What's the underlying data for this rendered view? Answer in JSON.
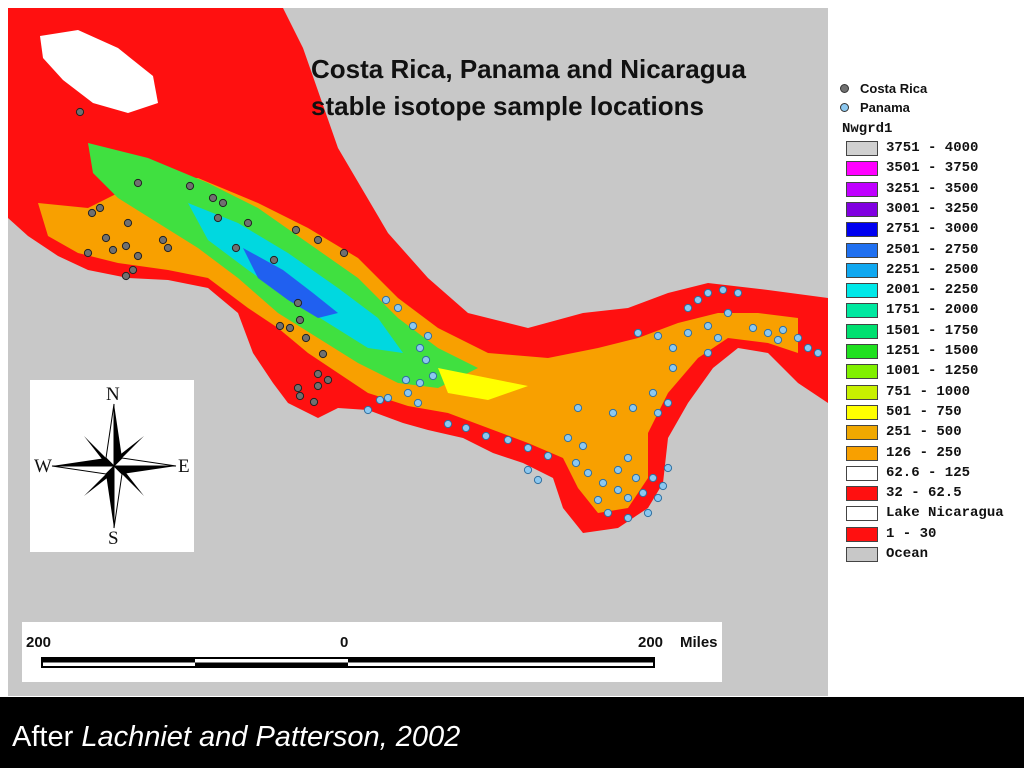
{
  "title": {
    "line1": "Costa Rica, Panama and Nicaragua",
    "line2": "stable isotope sample locations"
  },
  "compass": {
    "north": "N",
    "south": "S",
    "east": "E",
    "west": "W"
  },
  "scale": {
    "left": "200",
    "center": "0",
    "right": "200",
    "unit": "Miles"
  },
  "legend": {
    "points": [
      {
        "label": "Costa Rica",
        "color": "#707070"
      },
      {
        "label": "Panama",
        "color": "#8cc8f0"
      }
    ],
    "title": "Nwgrd1",
    "classes": [
      {
        "label": "3751 - 4000",
        "color": "#d0d0d0"
      },
      {
        "label": "3501 - 3750",
        "color": "#ff00ff"
      },
      {
        "label": "3251 - 3500",
        "color": "#c000ff"
      },
      {
        "label": "3001 - 3250",
        "color": "#8000e0"
      },
      {
        "label": "2751 - 3000",
        "color": "#0000f0"
      },
      {
        "label": "2501 - 2750",
        "color": "#2070f0"
      },
      {
        "label": "2251 - 2500",
        "color": "#10a8f0"
      },
      {
        "label": "2001 - 2250",
        "color": "#00e8e8"
      },
      {
        "label": "1751 - 2000",
        "color": "#00e8a0"
      },
      {
        "label": "1501 - 1750",
        "color": "#00e070"
      },
      {
        "label": "1251 - 1500",
        "color": "#20e020"
      },
      {
        "label": "1001 - 1250",
        "color": "#80f000"
      },
      {
        "label": "751 - 1000",
        "color": "#c8f000"
      },
      {
        "label": "501 - 750",
        "color": "#ffff00"
      },
      {
        "label": "251 - 500",
        "color": "#f0a800"
      },
      {
        "label": "126 - 250",
        "color": "#f8a000"
      },
      {
        "label": "62.6 - 125",
        "color": "#ffffff"
      },
      {
        "label": "32 - 62.5",
        "color": "#ff1010"
      },
      {
        "label": "Lake Nicaragua",
        "color": "#ffffff"
      },
      {
        "label": "1 - 30",
        "color": "#ff1010"
      },
      {
        "label": "Ocean",
        "color": "#c8c8c8"
      }
    ]
  },
  "caption": {
    "prefix": "After ",
    "source": "Lachniet and Patterson, 2002"
  }
}
